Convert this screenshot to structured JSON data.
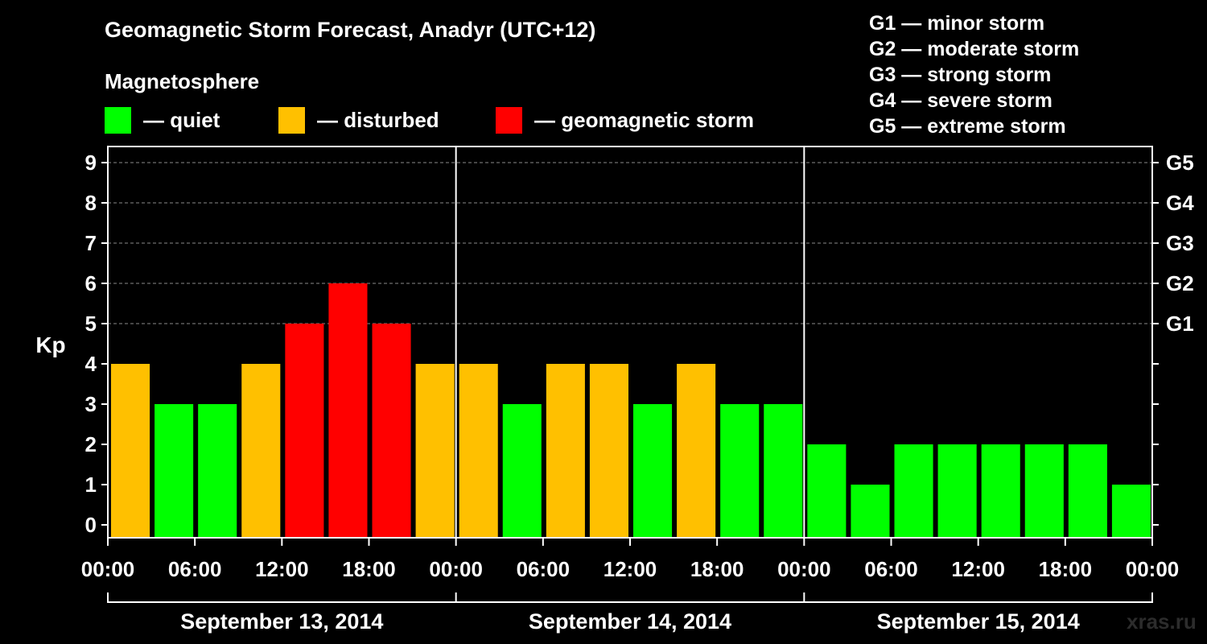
{
  "header": {
    "title": "Geomagnetic Storm Forecast, Anadyr (UTC+12)",
    "subtitle": "Magnetosphere"
  },
  "legend": [
    {
      "label": "— quiet",
      "color": "#00ff00"
    },
    {
      "label": "— disturbed",
      "color": "#ffc000"
    },
    {
      "label": "— geomagnetic storm",
      "color": "#ff0000"
    }
  ],
  "g_scale": [
    "G1 — minor storm",
    "G2 — moderate storm",
    "G3 — strong storm",
    "G4 — severe storm",
    "G5 — extreme storm"
  ],
  "credit": "xras.ru",
  "chart_data": {
    "type": "bar",
    "title": "Geomagnetic Storm Forecast, Anadyr (UTC+12)",
    "ylabel": "Kp",
    "ylim": [
      0,
      9
    ],
    "yticks": [
      0,
      1,
      2,
      3,
      4,
      5,
      6,
      7,
      8,
      9
    ],
    "right_axis_labels": [
      {
        "y": 5,
        "label": "G1"
      },
      {
        "y": 6,
        "label": "G2"
      },
      {
        "y": 7,
        "label": "G3"
      },
      {
        "y": 8,
        "label": "G4"
      },
      {
        "y": 9,
        "label": "G5"
      }
    ],
    "xtick_labels": [
      "00:00",
      "06:00",
      "12:00",
      "18:00",
      "00:00",
      "06:00",
      "12:00",
      "18:00",
      "00:00",
      "06:00",
      "12:00",
      "18:00",
      "00:00"
    ],
    "days": [
      "September 13, 2014",
      "September 14, 2014",
      "September 15, 2014"
    ],
    "bars_per_day": 8,
    "grid": "dashed horizontal at Kp 5-9",
    "colors": {
      "quiet": "#00ff00",
      "disturbed": "#ffc000",
      "storm": "#ff0000"
    },
    "values": [
      4,
      3,
      3,
      4,
      5,
      6,
      5,
      4,
      4,
      3,
      4,
      4,
      3,
      4,
      3,
      3,
      2,
      1,
      2,
      2,
      2,
      2,
      2,
      1
    ]
  }
}
